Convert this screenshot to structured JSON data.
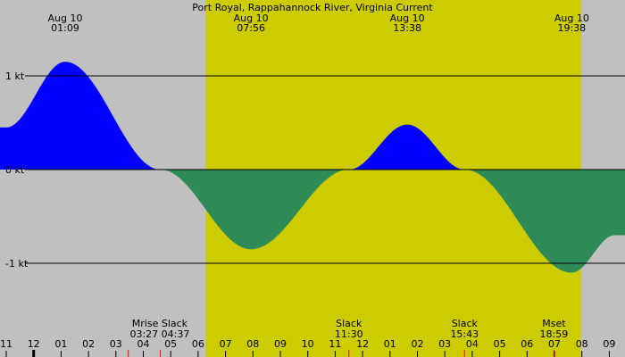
{
  "chart_data": {
    "type": "area",
    "title": "Port Royal, Rappahannock River, Virginia Current",
    "xlabel": "",
    "ylabel": "",
    "unit": "kt",
    "x_range_hours": [
      23,
      33.3
    ],
    "ylim": [
      -1.8,
      1.8
    ],
    "y_ticks": [
      {
        "value": 1,
        "label": "1 kt"
      },
      {
        "value": 0,
        "label": "0 kt"
      },
      {
        "value": -1,
        "label": "-1 kt"
      }
    ],
    "hour_ticks": [
      {
        "hour": 23,
        "label": "11"
      },
      {
        "hour": 24,
        "label": "12"
      },
      {
        "hour": 25,
        "label": "01"
      },
      {
        "hour": 26,
        "label": "02"
      },
      {
        "hour": 27,
        "label": "03"
      },
      {
        "hour": 28,
        "label": "04"
      },
      {
        "hour": 29,
        "label": "05"
      },
      {
        "hour": 30,
        "label": "06"
      },
      {
        "hour": 31,
        "label": "07"
      },
      {
        "hour": 32,
        "label": "08"
      },
      {
        "hour": 33,
        "label": "09"
      },
      {
        "hour": 34,
        "label": "10"
      },
      {
        "hour": 35,
        "label": "11"
      },
      {
        "hour": 36,
        "label": "12"
      },
      {
        "hour": 37,
        "label": "01"
      },
      {
        "hour": 38,
        "label": "02"
      },
      {
        "hour": 39,
        "label": "03"
      },
      {
        "hour": 40,
        "label": "04"
      },
      {
        "hour": 41,
        "label": "05"
      },
      {
        "hour": 42,
        "label": "06"
      },
      {
        "hour": 43,
        "label": "07"
      },
      {
        "hour": 44,
        "label": "08"
      },
      {
        "hour": 45,
        "label": "09"
      }
    ],
    "daylight": {
      "start_hour": 30.28,
      "end_hour": 43.97
    },
    "top_events": [
      {
        "date": "Aug 10",
        "time": "01:09",
        "hour": 25.15
      },
      {
        "date": "Aug 10",
        "time": "07:56",
        "hour": 31.93
      },
      {
        "date": "Aug 10",
        "time": "13:38",
        "hour": 37.63
      },
      {
        "date": "Aug 10",
        "time": "19:38",
        "hour": 43.63
      }
    ],
    "bottom_events": [
      {
        "label": "Mrise Slack",
        "time": "03:27 04:37",
        "hour": 28.6
      },
      {
        "label": "Slack",
        "time": "11:30",
        "hour": 35.5
      },
      {
        "label": "Slack",
        "time": "15:43",
        "hour": 39.72
      },
      {
        "label": "Mset",
        "time": "18:59",
        "hour": 42.98
      }
    ],
    "red_marks_hours": [
      27.45,
      28.62,
      35.5,
      39.72,
      42.98
    ],
    "midnight_hour": 24,
    "series": [
      {
        "name": "",
        "x": [
          23,
          25.15,
          28.62,
          31.93,
          35.5,
          37.63,
          39.72,
          43.63,
          45.2
        ],
        "values": [
          0.45,
          1.15,
          0,
          -0.85,
          0,
          0.48,
          0,
          -1.1,
          -0.7
        ]
      }
    ],
    "colors": {
      "flood": "#0000ff",
      "ebb": "#2e8b57",
      "daylight": "#cccc00",
      "night": "#c0c0c0",
      "axis": "#000000",
      "event_mark": "#ff0000"
    }
  }
}
